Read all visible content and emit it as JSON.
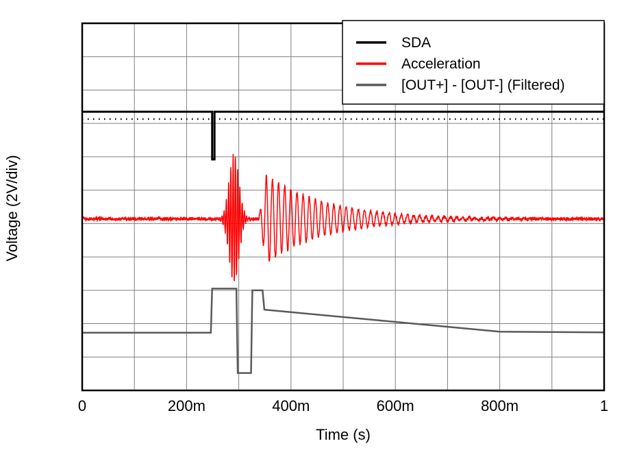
{
  "figure": {
    "xlabel": "Time (s)",
    "ylabel": "Voltage (2V/div)"
  },
  "chart_data": {
    "type": "line",
    "title": "",
    "xlabel": "Time (s)",
    "ylabel": "Voltage (2V/div)",
    "x_unit": "seconds",
    "y_units_per_div": "2V/div",
    "xlim": [
      0,
      1
    ],
    "ydivs": 11,
    "grid": true,
    "grid_color": "#7f7f7f",
    "border_color": "#000000",
    "xticks": [
      {
        "value": 0,
        "label": "0"
      },
      {
        "value": 0.2,
        "label": "200m"
      },
      {
        "value": 0.4,
        "label": "400m"
      },
      {
        "value": 0.6,
        "label": "600m"
      },
      {
        "value": 0.8,
        "label": "800m"
      },
      {
        "value": 1,
        "label": "1"
      }
    ],
    "legend": {
      "position": "top-right",
      "entries": [
        {
          "label": "SDA",
          "color": "#000000"
        },
        {
          "label": "Acceleration",
          "color": "#ff0000"
        },
        {
          "label": "[OUT+] - [OUT-] (Filtered)",
          "color": "#595959"
        }
      ]
    },
    "series": [
      {
        "name": "SDA",
        "color": "#000000",
        "width": 3,
        "type": "piecewise",
        "points": [
          [
            0,
            8.35
          ],
          [
            0.249,
            8.35
          ],
          [
            0.249,
            6.92
          ],
          [
            0.2535,
            6.92
          ],
          [
            0.2535,
            8.35
          ],
          [
            1,
            8.35
          ]
        ],
        "activity_dots": {
          "y_div": 8.13,
          "dash": [
            1.5,
            6.5
          ],
          "width": 2.5
        }
      },
      {
        "name": "Acceleration",
        "color": "#ff0000",
        "width": 1.5,
        "type": "synth",
        "baseline_div": 5.14,
        "noise_amp_div": 0.05,
        "bursts": [
          {
            "kind": "gauss",
            "t0": 0.262,
            "t1": 0.324,
            "center": 0.291,
            "sigma": 0.0135,
            "amp_div": 1.95,
            "freq_hz": 230
          },
          {
            "kind": "ring",
            "t0": 0.338,
            "t1": 0.86,
            "rise": 0.015,
            "decay_tau": 0.115,
            "amp_div": 1.32,
            "freq_hz": 85
          }
        ]
      },
      {
        "name": "[OUT+] - [OUT-] (Filtered)",
        "color": "#595959",
        "width": 2.5,
        "type": "piecewise",
        "points": [
          [
            0,
            1.73
          ],
          [
            0.2465,
            1.73
          ],
          [
            0.249,
            3.05
          ],
          [
            0.2955,
            3.05
          ],
          [
            0.298,
            0.52
          ],
          [
            0.3235,
            0.52
          ],
          [
            0.326,
            3.0
          ],
          [
            0.3455,
            3.0
          ],
          [
            0.349,
            2.42
          ],
          [
            0.8,
            1.76
          ],
          [
            1,
            1.74
          ]
        ]
      }
    ]
  }
}
